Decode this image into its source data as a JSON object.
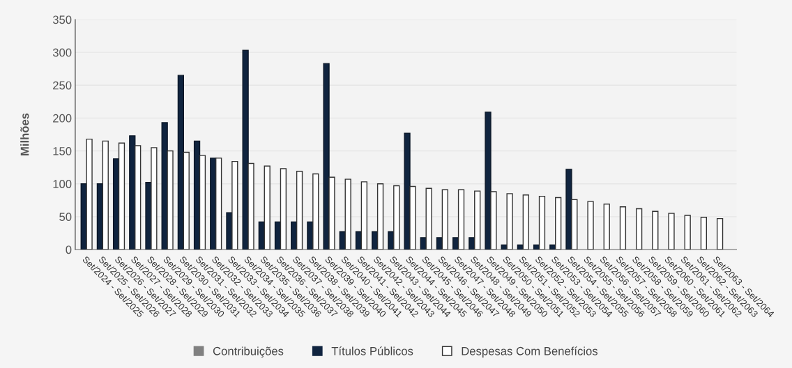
{
  "chart_data": {
    "type": "bar",
    "ylabel": "Milhões",
    "categories": [
      "Set/2024 - Set/2025",
      "Set/2025 - Set/2026",
      "Set/2026 - Set/2027",
      "Set/2027 - Set/2028",
      "Set/2028 - Set/2029",
      "Set/2029 - Set/2030",
      "Set/2030 - Set/2031",
      "Set/2031 - Set/2032",
      "Set/2032 - Set/2033",
      "Set/2033 - Set/2034",
      "Set/2034 - Set/2035",
      "Set/2035 - Set/2036",
      "Set/2036 - Set/2037",
      "Set/2037 - Set/2038",
      "Set/2038 - Set/2039",
      "Set/2039 - Set/2040",
      "Set/2040 - Set/2041",
      "Set/2041 - Set/2042",
      "Set/2042 - Set/2043",
      "Set/2043 - Set/2044",
      "Set/2044 - Set/2045",
      "Set/2045 - Set/2046",
      "Set/2046 - Set/2047",
      "Set/2047 - Set/2048",
      "Set/2048 - Set/2049",
      "Set/2049 - Set/2050",
      "Set/2050 - Set/2051",
      "Set/2051 - Set/2052",
      "Set/2052 - Set/2053",
      "Set/2053 - Set/2054",
      "Set/2054 - Set/2055",
      "Set/2055 - Set/2056",
      "Set/2056 - Set/2057",
      "Set/2057 - Set/2058",
      "Set/2058 - Set/2059",
      "Set/2059 - Set/2060",
      "Set/2060 - Set/2061",
      "Set/2061 - Set/2062",
      "Set/2062 - Set/2063",
      "Set/2063 - Set/2064"
    ],
    "series": [
      {
        "name": "Contribuições",
        "color": "#808080",
        "values": [
          null,
          null,
          null,
          null,
          null,
          null,
          null,
          null,
          null,
          null,
          null,
          null,
          null,
          null,
          null,
          null,
          null,
          null,
          null,
          null,
          null,
          null,
          null,
          null,
          null,
          null,
          null,
          null,
          null,
          null,
          null,
          null,
          null,
          null,
          null,
          null,
          null,
          null,
          null,
          null
        ]
      },
      {
        "name": "Títulos Públicos",
        "color": "#10243f",
        "values": [
          100,
          100,
          138,
          173,
          102,
          193,
          265,
          165,
          139,
          56,
          303,
          42,
          42,
          42,
          42,
          283,
          27,
          27,
          27,
          27,
          177,
          18,
          18,
          18,
          18,
          209,
          7,
          7,
          7,
          7,
          122,
          null,
          null,
          null,
          null,
          null,
          null,
          null,
          null,
          null
        ]
      },
      {
        "name": "Despesas Com Benefícios",
        "color": "#ffffff",
        "values": [
          168,
          165,
          162,
          158,
          155,
          150,
          148,
          143,
          139,
          134,
          131,
          127,
          123,
          119,
          115,
          110,
          107,
          103,
          100,
          97,
          96,
          93,
          91,
          91,
          89,
          88,
          85,
          83,
          81,
          79,
          76,
          73,
          69,
          65,
          62,
          58,
          55,
          52,
          49,
          47
        ]
      }
    ],
    "ylim": [
      0,
      350
    ],
    "yticks": [
      0,
      50,
      100,
      150,
      200,
      250,
      300,
      350
    ],
    "grid": "y",
    "legend": "bottom"
  }
}
